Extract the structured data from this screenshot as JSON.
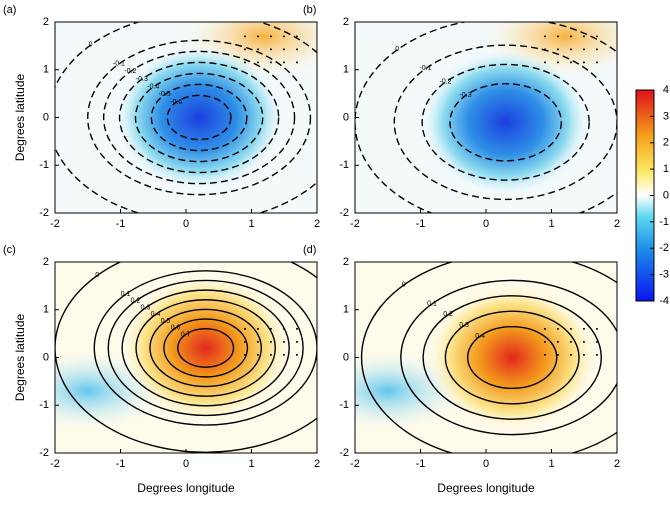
{
  "chart_data": [
    {
      "type": "contour",
      "label": "(a)",
      "ylabel": "Degrees latitude",
      "xlim": [
        -2,
        2
      ],
      "ylim": [
        -2,
        2
      ],
      "xticks": [
        -2,
        -1,
        0,
        1,
        2
      ],
      "yticks": [
        -2,
        -1,
        0,
        1,
        2
      ],
      "levels": [
        0,
        -0.1,
        -0.2,
        -0.3,
        -0.4,
        -0.5,
        -0.6
      ],
      "linestyle": "dashed"
    },
    {
      "type": "contour",
      "label": "(b)",
      "xlim": [
        -2,
        2
      ],
      "ylim": [
        -2,
        2
      ],
      "xticks": [
        -2,
        -1,
        0,
        1,
        2
      ],
      "yticks": [
        -2,
        -1,
        0,
        1,
        2
      ],
      "levels": [
        0,
        -0.1,
        -0.2,
        -0.3
      ],
      "linestyle": "dashed"
    },
    {
      "type": "contour",
      "label": "(c)",
      "xlabel": "Degrees longitude",
      "ylabel": "Degrees latitude",
      "xlim": [
        -2,
        2
      ],
      "ylim": [
        -2,
        2
      ],
      "xticks": [
        -2,
        -1,
        0,
        1,
        2
      ],
      "yticks": [
        -2,
        -1,
        0,
        1,
        2
      ],
      "levels": [
        0,
        0.1,
        0.2,
        0.3,
        0.4,
        0.5,
        0.6,
        0.7
      ],
      "linestyle": "solid"
    },
    {
      "type": "contour",
      "label": "(d)",
      "xlabel": "Degrees longitude",
      "xlim": [
        -2,
        2
      ],
      "ylim": [
        -2,
        2
      ],
      "xticks": [
        -2,
        -1,
        0,
        1,
        2
      ],
      "yticks": [
        -2,
        -1,
        0,
        1,
        2
      ],
      "levels": [
        0,
        0.1,
        0.2,
        0.3,
        0.4
      ],
      "linestyle": "solid"
    },
    {
      "type": "colorbar",
      "ylim": [
        -4,
        4
      ],
      "yticks": [
        -4,
        -3,
        -2,
        -1,
        0,
        1,
        2,
        3,
        4
      ]
    }
  ]
}
